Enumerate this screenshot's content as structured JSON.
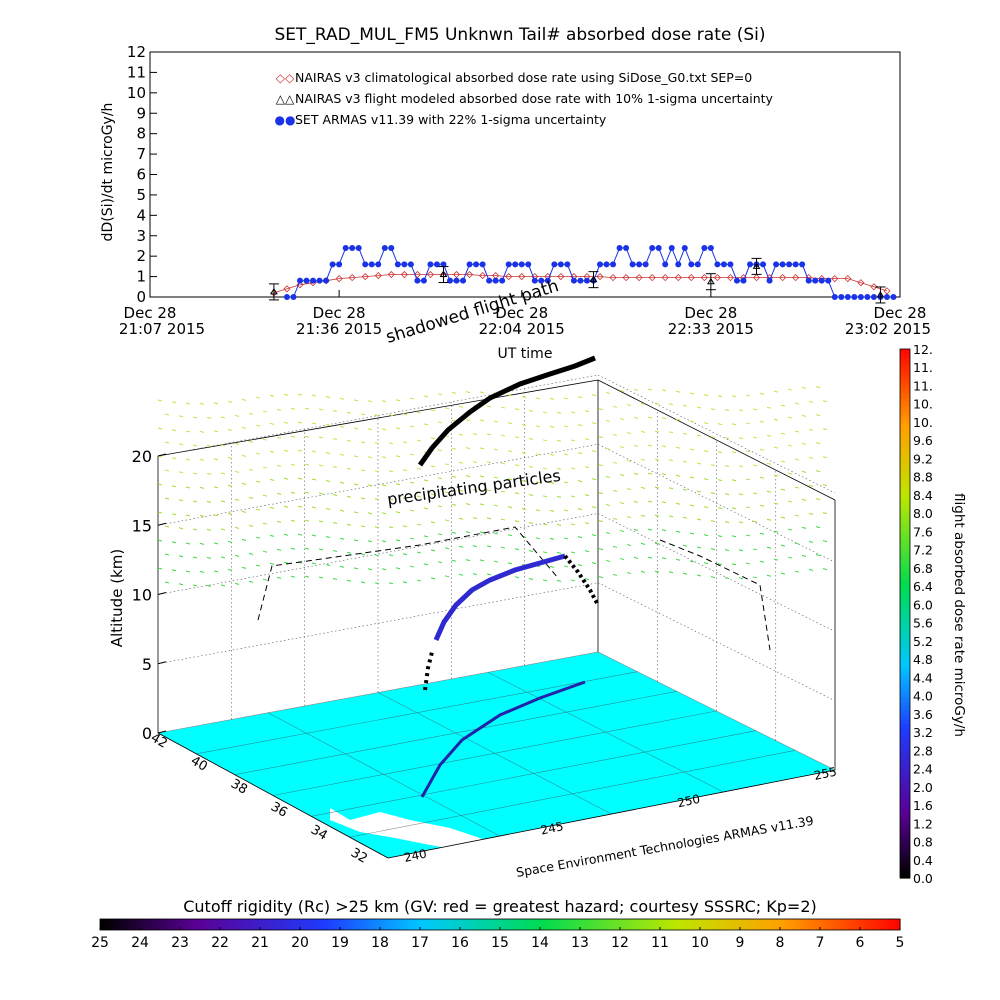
{
  "chart_data": [
    {
      "type": "line",
      "title": "SET_RAD_MUL_FM5 Unknwn Tail#  absorbed dose rate (Si)",
      "ylabel": "dD(Si)/dt microGy/h",
      "xlabel": "UT time",
      "ylim": [
        0,
        12
      ],
      "y_ticks": [
        "0",
        "1",
        "2",
        "3",
        "4",
        "5",
        "6",
        "7",
        "8",
        "9",
        "10",
        "11",
        "12"
      ],
      "x_ticks": [
        {
          "line1": "Dec 28",
          "line2": "21:07 2015"
        },
        {
          "line1": "Dec 28",
          "line2": "21:36 2015"
        },
        {
          "line1": "Dec 28",
          "line2": "22:04 2015"
        },
        {
          "line1": "Dec 28",
          "line2": "22:33 2015"
        },
        {
          "line1": "Dec 28",
          "line2": "23:02 2015"
        }
      ],
      "x_tick_minutes": [
        0,
        29,
        57,
        86,
        115
      ],
      "legend": [
        {
          "label": "NAIRAS v3 climatological absorbed dose rate using SiDose_G0.txt SEP=0",
          "color": "#cc3333",
          "marker": "◇"
        },
        {
          "label": "NAIRAS v3 flight modeled absorbed dose rate with 10% 1-sigma uncertainty",
          "color": "#000000",
          "marker": "△"
        },
        {
          "label": "SET ARMAS v11.39 with 22% 1-sigma uncertainty",
          "color": "#1a33e6",
          "marker": "●"
        }
      ],
      "series": [
        {
          "name": "NAIRAS v3 climatological absorbed dose rate using SiDose_G0.txt SEP=0",
          "color": "#cc3333",
          "x": [
            19,
            21,
            23,
            25,
            27,
            29,
            31,
            33,
            35,
            37,
            39,
            41,
            43,
            45,
            47,
            49,
            51,
            53,
            55,
            57,
            59,
            61,
            63,
            65,
            67,
            69,
            71,
            73,
            75,
            77,
            79,
            81,
            83,
            85,
            87,
            89,
            91,
            93,
            95,
            97,
            99,
            101,
            103,
            105,
            107,
            109,
            111,
            113
          ],
          "values": [
            0.2,
            0.4,
            0.6,
            0.7,
            0.8,
            0.9,
            0.95,
            1.0,
            1.05,
            1.1,
            1.1,
            1.1,
            1.1,
            1.1,
            1.1,
            1.1,
            1.05,
            1.05,
            1.0,
            1.0,
            1.0,
            1.0,
            1.0,
            1.0,
            1.0,
            1.0,
            0.95,
            0.95,
            0.95,
            0.95,
            0.95,
            0.95,
            0.95,
            0.95,
            0.95,
            0.95,
            0.95,
            0.95,
            0.95,
            0.95,
            0.95,
            0.95,
            0.9,
            0.9,
            0.9,
            0.7,
            0.5,
            0.3
          ]
        },
        {
          "name": "NAIRAS v3 flight modeled absorbed dose rate with 10% 1-sigma uncertainty",
          "color": "#000000",
          "x": [
            19,
            45,
            68,
            86,
            93,
            112
          ],
          "values": [
            0.25,
            1.1,
            0.85,
            0.75,
            1.5,
            0.1
          ]
        },
        {
          "name": "SET ARMAS v11.39 with 22% 1-sigma uncertainty",
          "color": "#1a33e6",
          "x": [
            21,
            22,
            23,
            24,
            25,
            26,
            27,
            28,
            29,
            30,
            31,
            32,
            33,
            34,
            35,
            36,
            37,
            38,
            39,
            40,
            41,
            42,
            43,
            44,
            45,
            46,
            47,
            48,
            49,
            50,
            51,
            52,
            53,
            54,
            55,
            56,
            57,
            58,
            59,
            60,
            61,
            62,
            63,
            64,
            65,
            66,
            67,
            68,
            69,
            70,
            71,
            72,
            73,
            74,
            75,
            76,
            77,
            78,
            79,
            80,
            81,
            82,
            83,
            84,
            85,
            86,
            87,
            88,
            89,
            90,
            91,
            92,
            93,
            94,
            95,
            96,
            97,
            98,
            99,
            100,
            101,
            102,
            103,
            104,
            105,
            106,
            107,
            108,
            109,
            110,
            111,
            112,
            113,
            114
          ],
          "values": [
            0,
            0,
            0.8,
            0.8,
            0.8,
            0.8,
            0.8,
            1.6,
            1.6,
            2.4,
            2.4,
            2.4,
            1.6,
            1.6,
            1.6,
            2.4,
            2.4,
            1.6,
            1.6,
            1.6,
            0.8,
            0.8,
            1.6,
            1.6,
            1.6,
            0.8,
            0.8,
            0.8,
            1.6,
            1.6,
            1.6,
            0.8,
            0.8,
            0.8,
            1.6,
            1.6,
            1.6,
            1.6,
            0.8,
            0.8,
            0.8,
            1.6,
            1.6,
            1.6,
            0.8,
            0.8,
            0.8,
            0.8,
            1.6,
            1.6,
            1.6,
            2.4,
            2.4,
            1.6,
            1.6,
            1.6,
            2.4,
            2.4,
            1.6,
            2.4,
            1.6,
            2.4,
            1.6,
            1.6,
            2.4,
            2.4,
            1.6,
            1.6,
            1.6,
            0.8,
            0.8,
            1.6,
            1.6,
            1.6,
            0.8,
            1.6,
            1.6,
            1.6,
            1.6,
            1.6,
            0.8,
            0.8,
            0.8,
            0.8,
            0,
            0,
            0,
            0,
            0,
            0,
            0,
            0,
            0,
            0
          ]
        }
      ]
    },
    {
      "type": "scatter",
      "zlabel": "Altitude (km)",
      "z_ticks": [
        "0",
        "5",
        "10",
        "15",
        "20"
      ],
      "lat_ticks": [
        "42",
        "40",
        "38",
        "36",
        "34",
        "32"
      ],
      "lon_ticks": [
        "240",
        "245",
        "250",
        "255"
      ],
      "annotations": [
        "shadowed flight path",
        "precipitating particles"
      ],
      "footer": "Space Environment Technologies ARMAS v11.39",
      "colorbar": {
        "label": "flight absorbed dose rate microGy/h",
        "ticks": [
          "0.0",
          "0.4",
          "0.8",
          "1.2",
          "1.6",
          "2.0",
          "2.4",
          "2.8",
          "3.2",
          "3.6",
          "4.0",
          "4.4",
          "4.8",
          "5.2",
          "5.6",
          "6.0",
          "6.4",
          "6.8",
          "7.2",
          "7.6",
          "8.0",
          "8.4",
          "8.8",
          "9.2",
          "9.6",
          "10.",
          "10.",
          "11.",
          "11.",
          "12."
        ],
        "range": [
          0,
          12
        ]
      }
    },
    {
      "type": "heatmap",
      "title": "Cutoff rigidity (Rc) >25 km (GV: red = greatest hazard; courtesy SSSRC; Kp=2)",
      "ticks": [
        "25",
        "24",
        "23",
        "22",
        "21",
        "20",
        "19",
        "18",
        "17",
        "16",
        "15",
        "14",
        "13",
        "12",
        "11",
        "10",
        "9",
        "8",
        "7",
        "6",
        "5"
      ],
      "range": [
        25,
        5
      ]
    }
  ]
}
